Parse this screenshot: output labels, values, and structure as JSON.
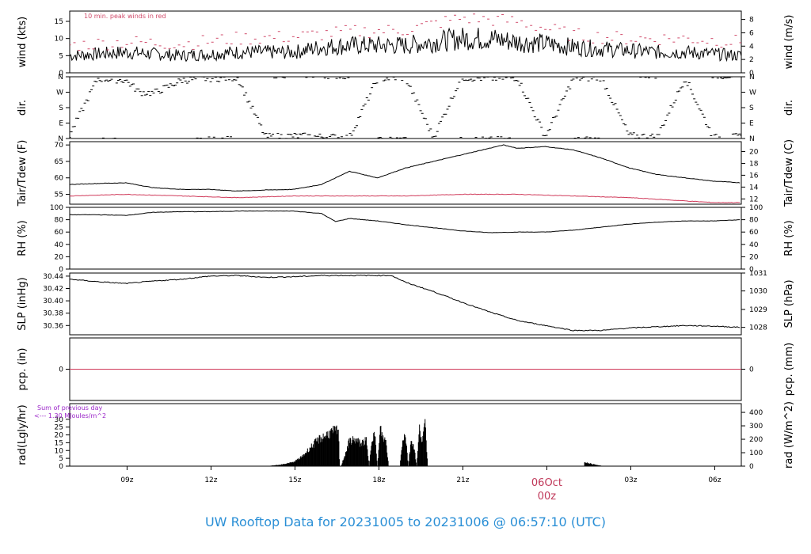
{
  "footer": "UW Rooftop Data for 20231005  to  20231006 @ 06:57:10  (UTC)",
  "colors": {
    "peak": "#d04a6a",
    "dew": "#d03a5a",
    "footer": "#2a8fd6",
    "note": "#9b26c9",
    "line": "#000000"
  },
  "time_axis": {
    "hours_span": 24,
    "ticks": [
      {
        "hour": 2.05,
        "label": "09z"
      },
      {
        "hour": 5.05,
        "label": "12z"
      },
      {
        "hour": 8.05,
        "label": "15z"
      },
      {
        "hour": 11.05,
        "label": "18z"
      },
      {
        "hour": 14.05,
        "label": "21z"
      },
      {
        "hour": 20.05,
        "label": "03z"
      },
      {
        "hour": 23.05,
        "label": "06z"
      }
    ],
    "date_mark": {
      "hour": 17.05,
      "day": "06Oct",
      "time": "00z"
    }
  },
  "notes": {
    "wind": "10 min. peak winds in red",
    "rad_line1": "Sum of previous day",
    "rad_line2": "<---  1.30  MJoules/m^2"
  },
  "chart_data": [
    {
      "id": "wind",
      "type": "line",
      "ylabel": "wind (kts)",
      "ylabel_right": "wind (m/s)",
      "ylim": [
        0,
        18
      ],
      "yticks": [
        "0",
        "5",
        "10",
        "15"
      ],
      "ytick_values": [
        0,
        5,
        10,
        15
      ],
      "yticks_right": [
        "0",
        "2",
        "4",
        "6",
        "8"
      ],
      "ytick_right_values": [
        0,
        3.89,
        7.78,
        11.66,
        15.55
      ],
      "series": [
        {
          "role": "mean",
          "x": [
            0,
            1,
            2,
            3,
            4,
            5,
            6,
            7,
            8,
            9,
            10,
            11,
            12,
            13,
            14,
            15,
            16,
            17,
            18,
            19,
            20,
            21,
            22,
            23,
            24
          ],
          "values": [
            5,
            5.5,
            6,
            5.5,
            5,
            5.5,
            6,
            6,
            6,
            7.5,
            8,
            8,
            8,
            9,
            10,
            10,
            9,
            8.5,
            7.5,
            7,
            6.5,
            6,
            6,
            5.5,
            5
          ]
        },
        {
          "role": "peak",
          "x": [
            0,
            2,
            4,
            6,
            8,
            10,
            12,
            14,
            16,
            18,
            20,
            22,
            24
          ],
          "values": [
            8,
            9,
            8.5,
            10,
            10.5,
            12,
            12.5,
            16,
            15,
            11,
            10,
            10,
            9
          ]
        }
      ]
    },
    {
      "id": "dir",
      "type": "scatter",
      "ylabel": "dir.",
      "ylabel_right": "dir.",
      "ylim": [
        0,
        360
      ],
      "yticks": [
        "N",
        "E",
        "S",
        "W",
        "N"
      ],
      "ytick_values": [
        0,
        90,
        180,
        270,
        360
      ],
      "yticks_right": [
        "N",
        "E",
        "S",
        "W",
        "N"
      ],
      "ytick_right_values": [
        0,
        90,
        180,
        270,
        360
      ],
      "series": [
        {
          "role": "direction",
          "x": [
            0,
            1,
            2,
            2.5,
            3,
            3.5,
            4,
            5,
            6,
            7,
            8,
            9,
            10,
            11,
            12,
            13,
            14,
            15,
            16,
            17,
            18,
            19,
            20,
            21,
            22,
            23,
            24
          ],
          "values": [
            20,
            350,
            340,
            270,
            265,
            300,
            340,
            350,
            355,
            10,
            15,
            10,
            5,
            350,
            355,
            5,
            355,
            350,
            355,
            10,
            350,
            355,
            15,
            10,
            355,
            5,
            10
          ]
        }
      ]
    },
    {
      "id": "temp",
      "type": "line",
      "ylabel": "Tair/Tdew (F)",
      "ylabel_right": "Tair/Tdew (C)",
      "ylim": [
        52,
        71
      ],
      "yticks": [
        "55",
        "60",
        "65",
        "70"
      ],
      "ytick_values": [
        55,
        60,
        65,
        70
      ],
      "yticks_right": [
        "12",
        "14",
        "16",
        "18",
        "20"
      ],
      "ytick_right_values": [
        53.6,
        57.2,
        60.8,
        64.4,
        68.0
      ],
      "series": [
        {
          "role": "air",
          "x": [
            0,
            1,
            2,
            3,
            4,
            5,
            6,
            7,
            8,
            9,
            9.5,
            10,
            11,
            12,
            13,
            14,
            15,
            15.5,
            16,
            17,
            18,
            19,
            20,
            21,
            22,
            23,
            24
          ],
          "values": [
            58,
            58.3,
            58.5,
            57,
            56.5,
            56.5,
            56,
            56.3,
            56.5,
            58,
            60,
            62,
            60,
            63,
            65,
            67,
            69,
            70,
            69,
            69.5,
            68.5,
            66,
            63,
            61,
            60,
            59,
            58.5
          ]
        },
        {
          "role": "dew",
          "x": [
            0,
            2,
            4,
            6,
            8,
            10,
            12,
            14,
            16,
            18,
            20,
            22,
            23,
            24
          ],
          "values": [
            54.5,
            55,
            54.5,
            54,
            54.5,
            54.5,
            54.5,
            55,
            55,
            54.5,
            54,
            53,
            52.5,
            52.5
          ]
        }
      ]
    },
    {
      "id": "rh",
      "type": "line",
      "ylabel": "RH (%)",
      "ylabel_right": "RH (%)",
      "ylim": [
        0,
        100
      ],
      "yticks": [
        "0",
        "20",
        "40",
        "60",
        "80",
        "100"
      ],
      "ytick_values": [
        0,
        20,
        40,
        60,
        80,
        100
      ],
      "yticks_right": [
        "0",
        "20",
        "40",
        "60",
        "80",
        "100"
      ],
      "ytick_right_values": [
        0,
        20,
        40,
        60,
        80,
        100
      ],
      "series": [
        {
          "role": "rh",
          "x": [
            0,
            1,
            2,
            3,
            4,
            5,
            6,
            7,
            8,
            9,
            9.5,
            10,
            11,
            12,
            13,
            14,
            15,
            16,
            17,
            18,
            19,
            20,
            21,
            22,
            23,
            24
          ],
          "values": [
            88,
            88,
            87,
            92,
            93,
            93,
            94,
            94,
            94,
            90,
            77,
            82,
            78,
            72,
            67,
            62,
            59,
            60,
            60,
            63,
            68,
            73,
            76,
            78,
            78,
            80
          ]
        }
      ]
    },
    {
      "id": "slp",
      "type": "line",
      "ylabel": "SLP (inHg)",
      "ylabel_right": "SLP (hPa)",
      "ylim": [
        30.345,
        30.445
      ],
      "yticks": [
        "30.36",
        "30.38",
        "30.40",
        "30.42",
        "30.44"
      ],
      "ytick_values": [
        30.36,
        30.38,
        30.4,
        30.42,
        30.44
      ],
      "yticks_right": [
        "1028",
        "1029",
        "1030",
        "1031"
      ],
      "ytick_right_values": [
        30.357,
        30.386,
        30.416,
        30.445
      ],
      "series": [
        {
          "role": "slp",
          "x": [
            0,
            1,
            2,
            3,
            4,
            5,
            6,
            7,
            8,
            9,
            10,
            11,
            11.5,
            12,
            13,
            14,
            15,
            16,
            17,
            18,
            19,
            20,
            21,
            22,
            23,
            24
          ],
          "values": [
            30.435,
            30.431,
            30.428,
            30.432,
            30.435,
            30.44,
            30.441,
            30.438,
            30.439,
            30.441,
            30.441,
            30.441,
            30.441,
            30.43,
            30.415,
            30.398,
            30.382,
            30.368,
            30.36,
            30.352,
            30.352,
            30.356,
            30.358,
            30.36,
            30.359,
            30.357
          ]
        }
      ]
    },
    {
      "id": "pcp",
      "type": "line",
      "ylabel": "pcp. (in)",
      "ylabel_right": "pcp. (mm)",
      "ylim": [
        -1,
        1
      ],
      "yticks": [
        "0"
      ],
      "ytick_values": [
        0
      ],
      "yticks_right": [
        "0"
      ],
      "ytick_right_values": [
        0
      ],
      "series": [
        {
          "role": "precip",
          "x": [
            0,
            24
          ],
          "values": [
            0,
            0
          ]
        }
      ]
    },
    {
      "id": "rad",
      "type": "area",
      "ylabel": "rad(Lgly/hr)",
      "ylabel_right": "rad (W/m^2)",
      "ylim": [
        0,
        40
      ],
      "yticks": [
        "0",
        "5",
        "10",
        "15",
        "20",
        "25",
        "30"
      ],
      "ytick_values": [
        0,
        5,
        10,
        15,
        20,
        25,
        30
      ],
      "yticks_right": [
        "0",
        "100",
        "200",
        "300",
        "400"
      ],
      "ytick_right_values": [
        0,
        8.6,
        17.2,
        25.8,
        34.4
      ],
      "series": [
        {
          "role": "radiation",
          "x": [
            7.0,
            7.5,
            8.0,
            8.3,
            8.6,
            8.9,
            9.3,
            9.6,
            9.65,
            9.7,
            10.0,
            10.2,
            10.4,
            10.6,
            10.7,
            10.8,
            10.9,
            11.0,
            11.1,
            11.2,
            11.3,
            11.4,
            11.5,
            11.6,
            11.7,
            11.8,
            11.9,
            12.0,
            12.1,
            12.2,
            12.3,
            12.4,
            12.5,
            12.6,
            12.7,
            12.8,
            12.85
          ],
          "values": [
            0,
            1,
            3,
            7,
            14,
            20,
            25,
            27,
            0,
            0,
            19,
            20,
            17,
            19,
            0,
            22,
            24,
            0,
            28,
            21,
            19,
            0,
            0,
            0,
            0,
            0,
            21,
            24,
            0,
            20,
            15,
            0,
            28,
            20,
            31,
            0,
            0
          ]
        },
        {
          "role": "radiation_evening",
          "x": [
            18.4,
            18.6,
            18.8,
            19.0,
            19.1
          ],
          "values": [
            3,
            2,
            1,
            0.3,
            0
          ]
        }
      ]
    }
  ]
}
